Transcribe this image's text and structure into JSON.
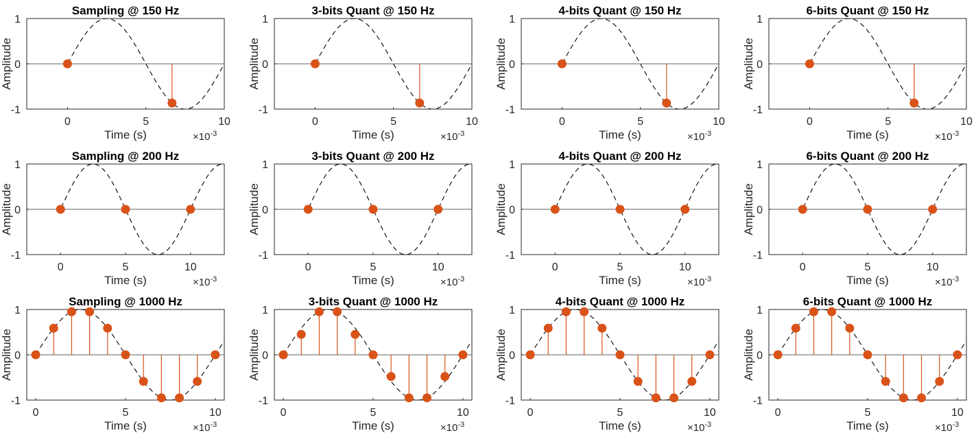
{
  "figure": {
    "xlabel": "Time (s)",
    "ylabel": "Amplitude",
    "x_exponent_label": "×10",
    "x_exponent_value": "-3",
    "colors": {
      "stem": "#D95319",
      "signal": "#000000",
      "axes": "#262626",
      "zero_line": "#808080"
    }
  },
  "chart_data": [
    {
      "type": "stem",
      "title": "Sampling @ 150 Hz",
      "xlabel": "Time (s)",
      "ylabel": "Amplitude",
      "xlim": [
        -2.6,
        10
      ],
      "ylim": [
        -1,
        1
      ],
      "xticks": [
        0,
        5,
        10
      ],
      "yticks": [
        -1,
        0,
        1
      ],
      "x_scale_note": "×10^-3",
      "reference_curve": "dashed sine, 100 Hz",
      "x": [
        0,
        6.667
      ],
      "y": [
        0,
        -0.866
      ]
    },
    {
      "type": "stem",
      "title": "3-bits Quant @ 150 Hz",
      "xlabel": "Time (s)",
      "ylabel": "Amplitude",
      "xlim": [
        -2.6,
        10
      ],
      "ylim": [
        -1,
        1
      ],
      "xticks": [
        0,
        5,
        10
      ],
      "yticks": [
        -1,
        0,
        1
      ],
      "x_scale_note": "×10^-3",
      "reference_curve": "dashed sine, 100 Hz",
      "x": [
        0,
        6.667
      ],
      "y": [
        0,
        -0.866
      ]
    },
    {
      "type": "stem",
      "title": "4-bits Quant @ 150 Hz",
      "xlabel": "Time (s)",
      "ylabel": "Amplitude",
      "xlim": [
        -2.6,
        10
      ],
      "ylim": [
        -1,
        1
      ],
      "xticks": [
        0,
        5,
        10
      ],
      "yticks": [
        -1,
        0,
        1
      ],
      "x_scale_note": "×10^-3",
      "reference_curve": "dashed sine, 100 Hz",
      "x": [
        0,
        6.667
      ],
      "y": [
        0,
        -0.866
      ]
    },
    {
      "type": "stem",
      "title": "6-bits Quant @ 150 Hz",
      "xlabel": "Time (s)",
      "ylabel": "Amplitude",
      "xlim": [
        -2.6,
        10
      ],
      "ylim": [
        -1,
        1
      ],
      "xticks": [
        0,
        5,
        10
      ],
      "yticks": [
        -1,
        0,
        1
      ],
      "x_scale_note": "×10^-3",
      "reference_curve": "dashed sine, 100 Hz",
      "x": [
        0,
        6.667
      ],
      "y": [
        0,
        -0.866
      ]
    },
    {
      "type": "stem",
      "title": "Sampling @ 200 Hz",
      "xlabel": "Time (s)",
      "ylabel": "Amplitude",
      "xlim": [
        -2.6,
        12.6
      ],
      "ylim": [
        -1,
        1
      ],
      "xticks": [
        0,
        5,
        10
      ],
      "yticks": [
        -1,
        0,
        1
      ],
      "x_scale_note": "×10^-3",
      "reference_curve": "dashed sine, 100 Hz",
      "x": [
        0,
        5,
        10
      ],
      "y": [
        0,
        0,
        0
      ]
    },
    {
      "type": "stem",
      "title": "3-bits Quant @ 200 Hz",
      "xlabel": "Time (s)",
      "ylabel": "Amplitude",
      "xlim": [
        -2.6,
        12.6
      ],
      "ylim": [
        -1,
        1
      ],
      "xticks": [
        0,
        5,
        10
      ],
      "yticks": [
        -1,
        0,
        1
      ],
      "x_scale_note": "×10^-3",
      "reference_curve": "dashed sine, 100 Hz",
      "x": [
        0,
        5,
        10
      ],
      "y": [
        0,
        0,
        0
      ]
    },
    {
      "type": "stem",
      "title": "4-bits Quant @ 200 Hz",
      "xlabel": "Time (s)",
      "ylabel": "Amplitude",
      "xlim": [
        -2.6,
        12.6
      ],
      "ylim": [
        -1,
        1
      ],
      "xticks": [
        0,
        5,
        10
      ],
      "yticks": [
        -1,
        0,
        1
      ],
      "x_scale_note": "×10^-3",
      "reference_curve": "dashed sine, 100 Hz",
      "x": [
        0,
        5,
        10
      ],
      "y": [
        0,
        0,
        0
      ]
    },
    {
      "type": "stem",
      "title": "6-bits Quant @ 200 Hz",
      "xlabel": "Time (s)",
      "ylabel": "Amplitude",
      "xlim": [
        -2.6,
        12.6
      ],
      "ylim": [
        -1,
        1
      ],
      "xticks": [
        0,
        5,
        10
      ],
      "yticks": [
        -1,
        0,
        1
      ],
      "x_scale_note": "×10^-3",
      "reference_curve": "dashed sine, 100 Hz",
      "x": [
        0,
        5,
        10
      ],
      "y": [
        0,
        0,
        0
      ]
    },
    {
      "type": "stem",
      "title": "Sampling @ 1000 Hz",
      "xlabel": "Time (s)",
      "ylabel": "Amplitude",
      "xlim": [
        -0.5,
        10.5
      ],
      "ylim": [
        -1,
        1
      ],
      "xticks": [
        0,
        5,
        10
      ],
      "yticks": [
        -1,
        0,
        1
      ],
      "x_scale_note": "×10^-3",
      "reference_curve": "dashed sine, 100 Hz",
      "x": [
        0,
        1,
        2,
        3,
        4,
        5,
        6,
        7,
        8,
        9,
        10
      ],
      "y": [
        0,
        0.588,
        0.951,
        0.951,
        0.588,
        0,
        -0.588,
        -0.951,
        -0.951,
        -0.588,
        0
      ]
    },
    {
      "type": "stem",
      "title": "3-bits Quant @ 1000 Hz",
      "xlabel": "Time (s)",
      "ylabel": "Amplitude",
      "xlim": [
        -0.5,
        10.5
      ],
      "ylim": [
        -1,
        1
      ],
      "xticks": [
        0,
        5,
        10
      ],
      "yticks": [
        -1,
        0,
        1
      ],
      "x_scale_note": "×10^-3",
      "reference_curve": "dashed sine, 100 Hz",
      "x": [
        0,
        1,
        2,
        3,
        4,
        5,
        6,
        7,
        8,
        9,
        10
      ],
      "y": [
        0,
        0.45,
        0.95,
        0.95,
        0.45,
        0,
        -0.48,
        -0.95,
        -0.95,
        -0.48,
        0
      ]
    },
    {
      "type": "stem",
      "title": "4-bits Quant @ 1000 Hz",
      "xlabel": "Time (s)",
      "ylabel": "Amplitude",
      "xlim": [
        -0.5,
        10.5
      ],
      "ylim": [
        -1,
        1
      ],
      "xticks": [
        0,
        5,
        10
      ],
      "yticks": [
        -1,
        0,
        1
      ],
      "x_scale_note": "×10^-3",
      "reference_curve": "dashed sine, 100 Hz",
      "x": [
        0,
        1,
        2,
        3,
        4,
        5,
        6,
        7,
        8,
        9,
        10
      ],
      "y": [
        0,
        0.588,
        0.951,
        0.951,
        0.588,
        0,
        -0.588,
        -0.951,
        -0.951,
        -0.588,
        0
      ]
    },
    {
      "type": "stem",
      "title": "6-bits Quant @ 1000 Hz",
      "xlabel": "Time (s)",
      "ylabel": "Amplitude",
      "xlim": [
        -0.5,
        10.5
      ],
      "ylim": [
        -1,
        1
      ],
      "xticks": [
        0,
        5,
        10
      ],
      "yticks": [
        -1,
        0,
        1
      ],
      "x_scale_note": "×10^-3",
      "reference_curve": "dashed sine, 100 Hz",
      "x": [
        0,
        1,
        2,
        3,
        4,
        5,
        6,
        7,
        8,
        9,
        10
      ],
      "y": [
        0,
        0.588,
        0.951,
        0.951,
        0.588,
        0,
        -0.588,
        -0.951,
        -0.951,
        -0.588,
        0
      ]
    }
  ]
}
